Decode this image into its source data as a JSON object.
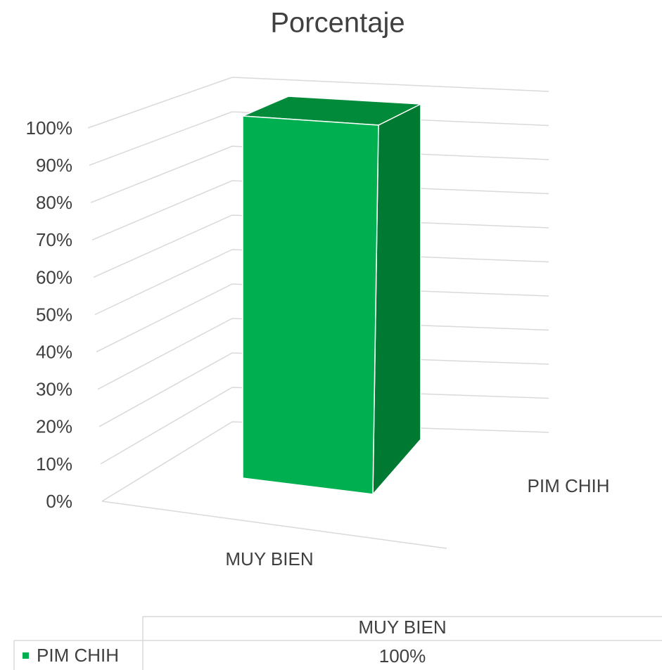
{
  "chart_data": {
    "type": "bar",
    "title": "Porcentaje",
    "categories": [
      "MUY BIEN"
    ],
    "series": [
      {
        "name": "PIM CHIH",
        "color": "#00b050",
        "values": [
          100
        ],
        "value_labels": [
          "100%"
        ]
      }
    ],
    "ylim": [
      0,
      100
    ],
    "yticks": [
      {
        "value": 0,
        "label": "0%"
      },
      {
        "value": 10,
        "label": "10%"
      },
      {
        "value": 20,
        "label": "20%"
      },
      {
        "value": 30,
        "label": "30%"
      },
      {
        "value": 40,
        "label": "40%"
      },
      {
        "value": 50,
        "label": "50%"
      },
      {
        "value": 60,
        "label": "60%"
      },
      {
        "value": 70,
        "label": "70%"
      },
      {
        "value": 80,
        "label": "80%"
      },
      {
        "value": 90,
        "label": "90%"
      },
      {
        "value": 100,
        "label": "100%"
      }
    ],
    "grid": true
  }
}
